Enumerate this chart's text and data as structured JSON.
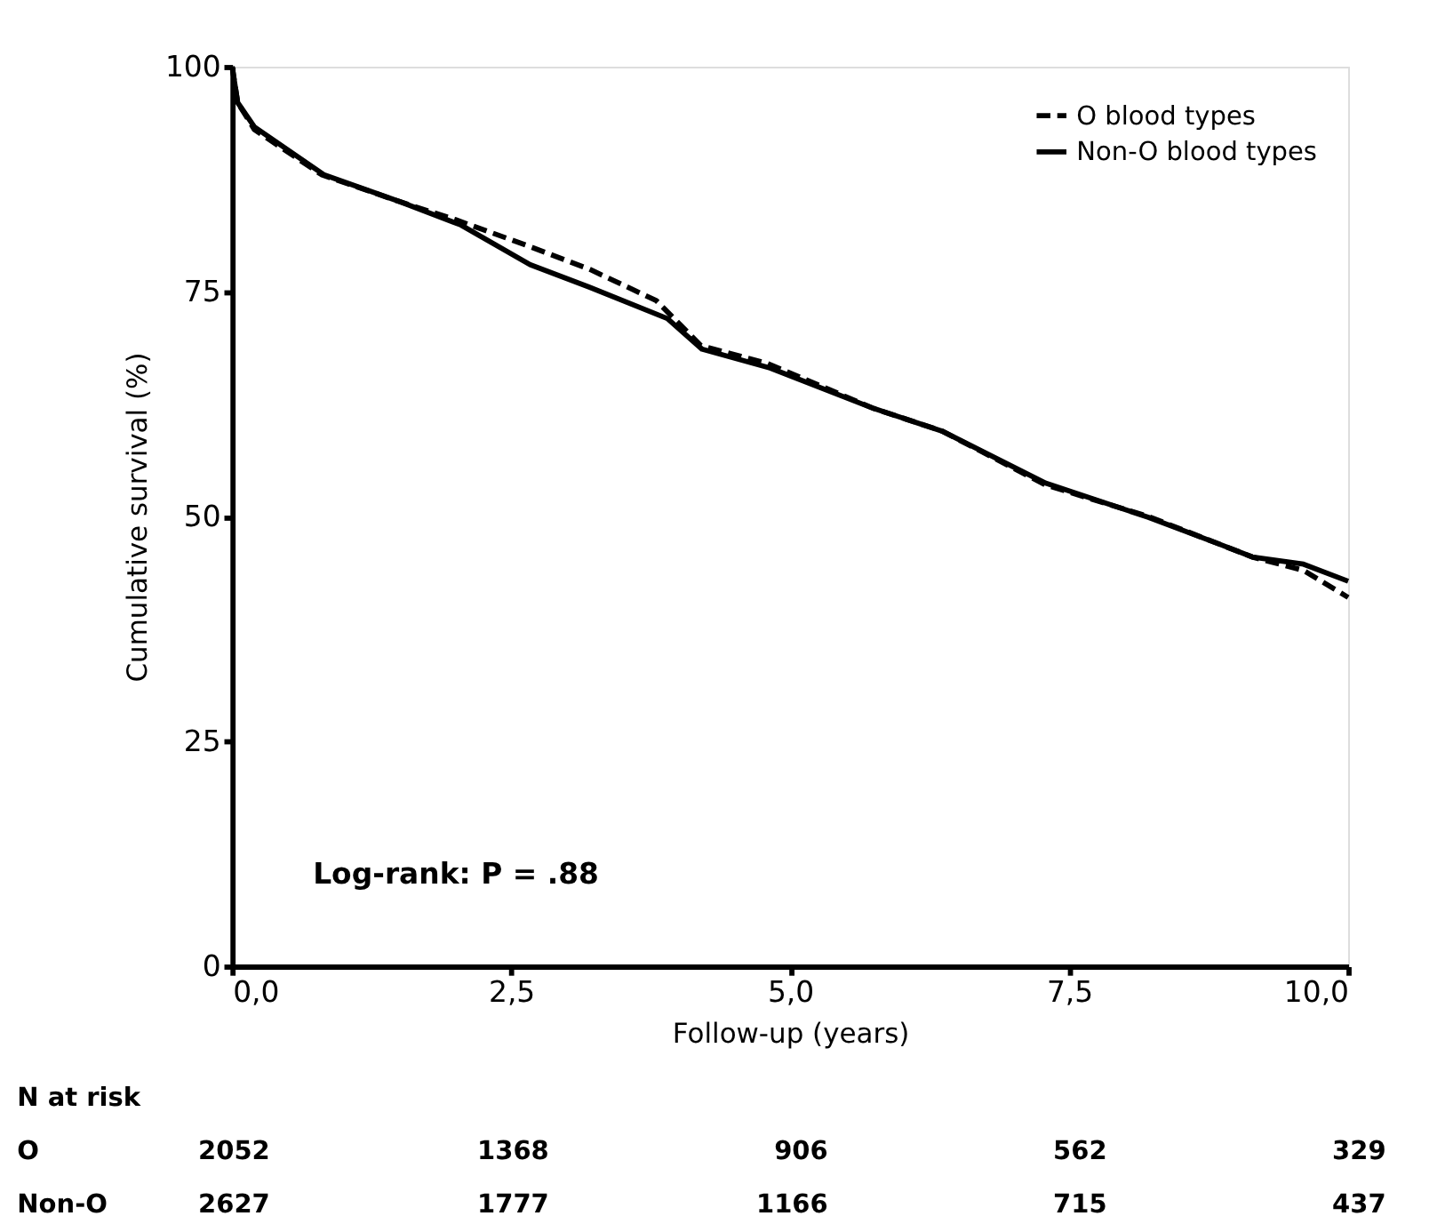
{
  "chart_data": {
    "type": "line",
    "xlabel": "Follow-up (years)",
    "ylabel": "Cumulative survival (%)",
    "xlim": [
      0,
      10
    ],
    "ylim": [
      0,
      100
    ],
    "xticks": [
      {
        "value": 0,
        "label": "0,0"
      },
      {
        "value": 2.5,
        "label": "2,5"
      },
      {
        "value": 5,
        "label": "5,0"
      },
      {
        "value": 7.5,
        "label": "7,5"
      },
      {
        "value": 10,
        "label": "10,0"
      }
    ],
    "yticks": [
      0,
      25,
      50,
      75,
      100
    ],
    "grid": false,
    "legend": "top right",
    "series": [
      {
        "name": "O blood types",
        "color": "#000000",
        "line_style": "dashed",
        "x": [
          0,
          0.05,
          0.2,
          0.8,
          1.5,
          2.0,
          2.67,
          3.2,
          3.8,
          4.2,
          4.8,
          5.75,
          6.36,
          7.29,
          8.21,
          8.83,
          9.14,
          9.6,
          10.0
        ],
        "values": [
          100,
          96,
          93,
          88,
          85,
          83,
          80,
          77.5,
          74,
          69,
          67,
          62,
          59.5,
          53.5,
          50,
          47,
          45.5,
          44,
          41
        ]
      },
      {
        "name": "Non-O blood types",
        "color": "#000000",
        "line_style": "solid",
        "x": [
          0,
          0.05,
          0.2,
          0.82,
          1.5,
          2.05,
          2.67,
          3.2,
          3.9,
          4.21,
          4.82,
          5.75,
          6.36,
          7.29,
          8.21,
          8.83,
          9.14,
          9.6,
          10.0
        ],
        "values": [
          100,
          96,
          93.3,
          88,
          85,
          82.4,
          78,
          75.5,
          72,
          68.6,
          66.5,
          62,
          59.5,
          53.7,
          49.9,
          47,
          45.5,
          44.7,
          42.8
        ]
      }
    ],
    "annotations": [
      "Log-rank: P = .88",
      "N at risk",
      "O",
      "2052",
      "1368",
      "906",
      "562",
      "329",
      "Non-O",
      "2627",
      "1777",
      "1166",
      "715",
      "437"
    ]
  }
}
